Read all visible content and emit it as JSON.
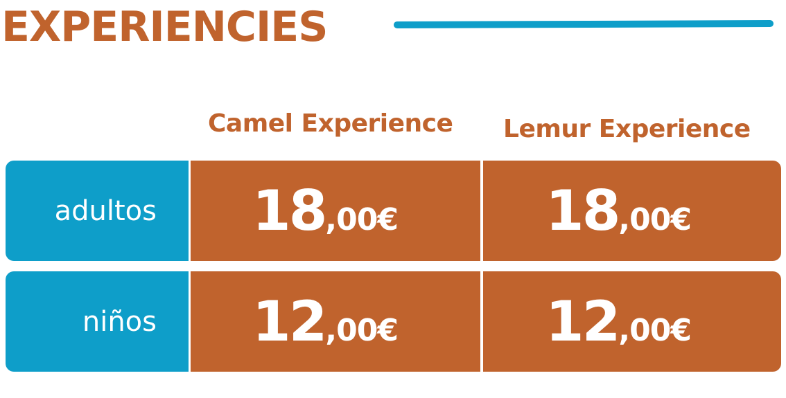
{
  "title": "EXPERIENCIES",
  "columns": [
    "Camel Experience",
    "Lemur Experience"
  ],
  "rows": [
    {
      "label": "adultos",
      "prices": [
        {
          "main": "18",
          "decimal": ",00€"
        },
        {
          "main": "18",
          "decimal": ",00€"
        }
      ]
    },
    {
      "label": "niños",
      "prices": [
        {
          "main": "12",
          "decimal": ",00€"
        },
        {
          "main": "12",
          "decimal": ",00€"
        }
      ]
    }
  ],
  "colors": {
    "accent_orange": "#c0632d",
    "accent_blue": "#0e9ec9",
    "text_on_fill": "#ffffff"
  }
}
